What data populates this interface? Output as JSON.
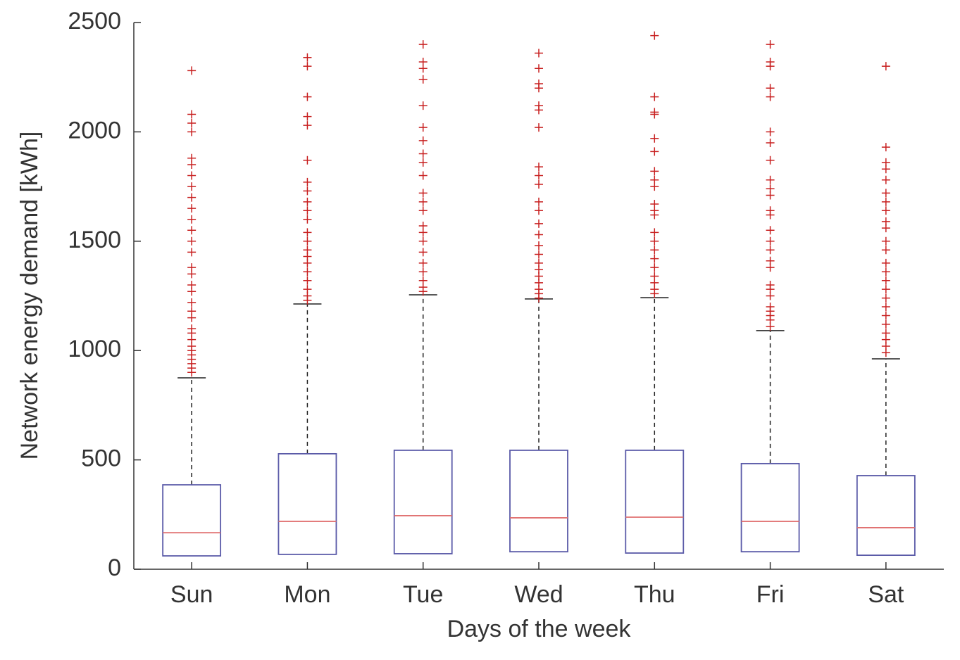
{
  "chart_data": {
    "type": "box",
    "x_label": "Days of the week",
    "y_label": "Network energy demand [kWh]",
    "categories": [
      "Sun",
      "Mon",
      "Tue",
      "Wed",
      "Thu",
      "Fri",
      "Sat"
    ],
    "box_color": "#5a5aa8",
    "median_color": "#e07070",
    "outlier_color": "#c82020",
    "whisker_color": "#222222",
    "boxes": [
      {
        "q1": 61,
        "median": 167,
        "q3": 386,
        "whisker_high": 875,
        "outliers": [
          2280,
          2080,
          2040,
          2000,
          1880,
          1850,
          1800,
          1750,
          1700,
          1650,
          1600,
          1550,
          1500,
          1450,
          1380,
          1350,
          1300,
          1270,
          1220,
          1180,
          1150,
          1100,
          1080,
          1050,
          1020,
          1000,
          980,
          960,
          940,
          920,
          900
        ]
      },
      {
        "q1": 68,
        "median": 219,
        "q3": 528,
        "whisker_high": 1213,
        "outliers": [
          2340,
          2300,
          2160,
          2070,
          2030,
          1870,
          1770,
          1730,
          1680,
          1640,
          1600,
          1540,
          1500,
          1460,
          1430,
          1400,
          1360,
          1320,
          1280,
          1250,
          1230
        ]
      },
      {
        "q1": 71,
        "median": 245,
        "q3": 544,
        "whisker_high": 1255,
        "outliers": [
          2400,
          2320,
          2290,
          2240,
          2120,
          2020,
          1960,
          1900,
          1860,
          1800,
          1720,
          1680,
          1640,
          1570,
          1540,
          1500,
          1450,
          1400,
          1360,
          1320,
          1290,
          1270
        ]
      },
      {
        "q1": 80,
        "median": 235,
        "q3": 544,
        "whisker_high": 1236,
        "outliers": [
          2360,
          2290,
          2220,
          2200,
          2120,
          2100,
          2020,
          1840,
          1800,
          1760,
          1680,
          1640,
          1580,
          1530,
          1480,
          1440,
          1400,
          1370,
          1340,
          1310,
          1280,
          1260,
          1240
        ]
      },
      {
        "q1": 74,
        "median": 238,
        "q3": 544,
        "whisker_high": 1242,
        "outliers": [
          2440,
          2160,
          2090,
          2080,
          1970,
          1910,
          1820,
          1780,
          1750,
          1670,
          1640,
          1620,
          1540,
          1500,
          1460,
          1420,
          1380,
          1340,
          1310,
          1280,
          1260
        ]
      },
      {
        "q1": 80,
        "median": 219,
        "q3": 483,
        "whisker_high": 1091,
        "outliers": [
          2400,
          2320,
          2300,
          2200,
          2160,
          2000,
          1950,
          1870,
          1780,
          1740,
          1710,
          1640,
          1620,
          1550,
          1500,
          1460,
          1410,
          1380,
          1300,
          1280,
          1250,
          1200,
          1180,
          1160,
          1140,
          1110
        ]
      },
      {
        "q1": 64,
        "median": 190,
        "q3": 428,
        "whisker_high": 962,
        "outliers": [
          2300,
          1930,
          1860,
          1830,
          1780,
          1720,
          1680,
          1640,
          1590,
          1560,
          1500,
          1460,
          1400,
          1360,
          1320,
          1280,
          1240,
          1200,
          1160,
          1120,
          1080,
          1050,
          1020,
          990
        ]
      }
    ],
    "ylim": [
      0,
      2500
    ],
    "yticks": [
      0,
      500,
      1000,
      1500,
      2000,
      2500
    ]
  }
}
